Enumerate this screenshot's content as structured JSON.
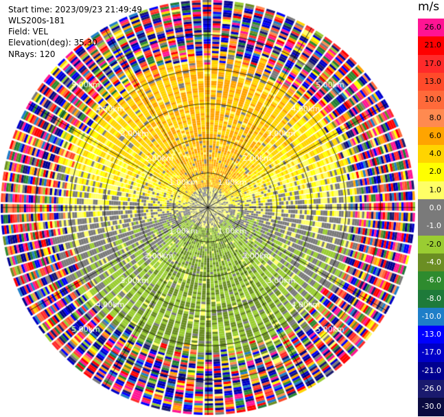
{
  "header": {
    "start_time": "Start time: 2023/09/23 21:49:49",
    "station": "WLS200s-181",
    "field": "Field: VEL",
    "elevation": "Elevation(deg): 35.30",
    "nrays": "NRays: 120"
  },
  "colorbar": {
    "unit": "m/s",
    "ticks": [
      "26.0",
      "21.0",
      "17.0",
      "13.0",
      "10.0",
      "8.0",
      "6.0",
      "4.0",
      "2.0",
      "1.0",
      "0.0",
      "-1.0",
      "-2.0",
      "-4.0",
      "-6.0",
      "-8.0",
      "-10.0",
      "-13.0",
      "-17.0",
      "-21.0",
      "-26.0",
      "-30.0"
    ],
    "colors": [
      "#ff1493",
      "#ff0000",
      "#ff2a2a",
      "#ff4a2a",
      "#ff6a3a",
      "#ff8a50",
      "#ffa400",
      "#ffd400",
      "#ffff00",
      "#ffff66",
      "#7a7a7a",
      "#7a7a7a",
      "#9acd32",
      "#6b8e23",
      "#2e8b2e",
      "#1e7a3a",
      "#1e7ec8",
      "#0000ff",
      "#0000c8",
      "#000090",
      "#1a1a6e",
      "#0a0a40"
    ]
  },
  "chart_data": {
    "type": "heatmap",
    "title": "",
    "field": "VEL",
    "unit": "m/s",
    "nrays": 120,
    "elevation_deg": 35.3,
    "max_range_km": 6.0,
    "range_rings_km": [
      1.0,
      2.0,
      3.0,
      4.0,
      5.0
    ],
    "range_ring_labels": [
      "1.00km",
      "2.00km",
      "3.00km",
      "4.00km",
      "5.00km"
    ],
    "spoke_step_deg": 30,
    "vmin": -30.0,
    "vmax": 26.0,
    "dominant_pattern": [
      {
        "region": "north half, 0.5-4 km",
        "value_range_ms": [
          1.0,
          6.0
        ]
      },
      {
        "region": "south half, 0.5-4 km",
        "value_range_ms": [
          -6.0,
          -1.0
        ]
      },
      {
        "region": "near center",
        "value_range_ms": [
          -1.0,
          1.0
        ]
      },
      {
        "region": "beyond 4.5 km",
        "value_range_ms": "noise"
      }
    ]
  }
}
